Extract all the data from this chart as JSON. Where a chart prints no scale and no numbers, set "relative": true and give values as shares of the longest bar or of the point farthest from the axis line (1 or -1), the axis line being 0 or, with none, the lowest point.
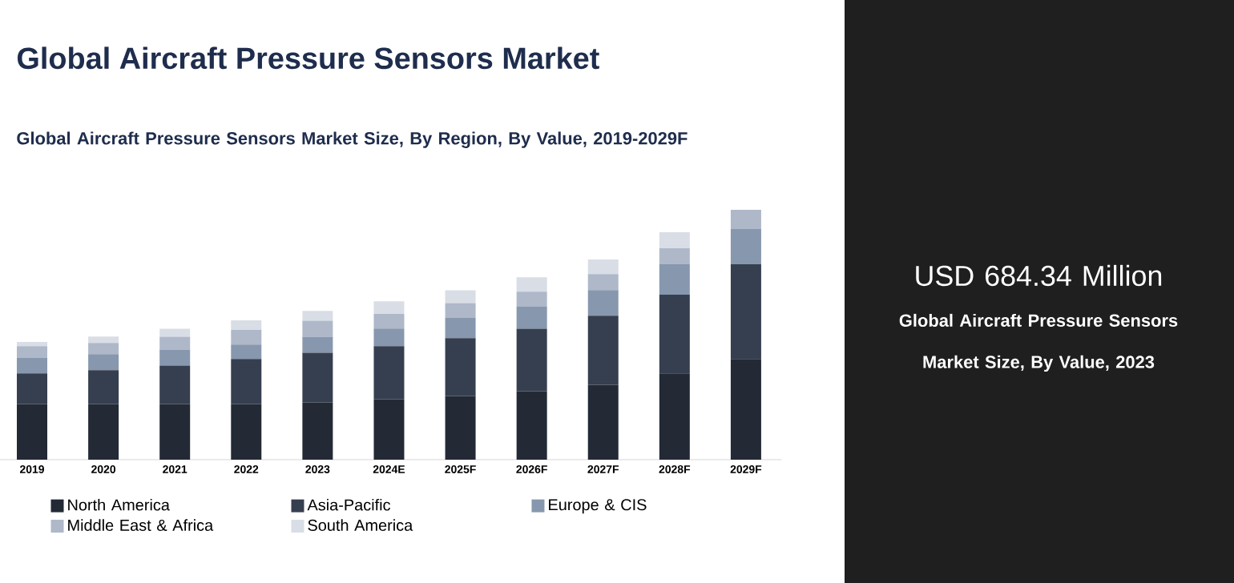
{
  "chart_data": {
    "type": "bar",
    "title": "Global Aircraft Pressure Sensors Market",
    "subtitle": "Global Aircraft Pressure Sensors Market Size, By Region, By Value, 2019-2029F",
    "categories": [
      "2019",
      "2020",
      "2021",
      "2022",
      "2023",
      "2024E",
      "2025F",
      "2026F",
      "2027F",
      "2028F",
      "2029F"
    ],
    "stacked": true,
    "relative": true,
    "legend": "bottom",
    "series": [
      {
        "name": "North America",
        "color": "#232a36",
        "values": [
          0.223,
          0.223,
          0.223,
          0.223,
          0.229,
          0.242,
          0.255,
          0.274,
          0.3,
          0.345,
          0.403
        ]
      },
      {
        "name": "Asia-Pacific",
        "color": "#363f50",
        "values": [
          0.122,
          0.135,
          0.154,
          0.18,
          0.199,
          0.212,
          0.231,
          0.25,
          0.276,
          0.315,
          0.379
        ]
      },
      {
        "name": "Europe & CIS",
        "color": "#8797ae",
        "values": [
          0.064,
          0.064,
          0.064,
          0.058,
          0.064,
          0.071,
          0.083,
          0.09,
          0.103,
          0.122,
          0.141
        ]
      },
      {
        "name": "Middle East & Africa",
        "color": "#aeb8c9",
        "values": [
          0.045,
          0.045,
          0.051,
          0.058,
          0.064,
          0.058,
          0.058,
          0.058,
          0.064,
          0.064,
          0.077
        ]
      },
      {
        "name": "South America",
        "color": "#d9dde5",
        "values": [
          0.017,
          0.026,
          0.032,
          0.039,
          0.039,
          0.051,
          0.051,
          0.058,
          0.058,
          0.064,
          null
        ]
      }
    ],
    "annotations": [
      "USD 684.34 Million",
      "Global Aircraft Pressure Sensors Market Size, By Value, 2023"
    ]
  }
}
